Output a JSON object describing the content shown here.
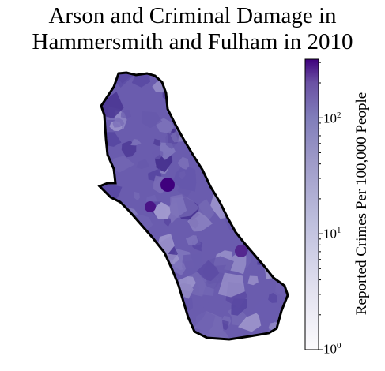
{
  "title": {
    "line1": "Arson and Criminal Damage in",
    "line2": "Hammersmith and Fulham in 2010"
  },
  "colorbar": {
    "label": "Reported Crimes Per 100,000 People",
    "scale": "log",
    "range": [
      1,
      320
    ],
    "colormap": "Purples",
    "ticks": [
      {
        "base": "10",
        "exp": "0",
        "value": 1
      },
      {
        "base": "10",
        "exp": "1",
        "value": 10
      },
      {
        "base": "10",
        "exp": "2",
        "value": 100
      }
    ],
    "color_low": "#fcfbfd",
    "color_mid": "#9e9ac8",
    "color_high": "#3f007d"
  },
  "map": {
    "region": "Hammersmith and Fulham",
    "outline_color": "#000000",
    "typical_fill": "#6a51a3"
  }
}
